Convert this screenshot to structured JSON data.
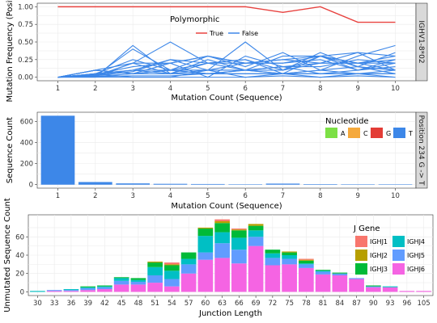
{
  "chart_data": [
    {
      "type": "line",
      "facet_label": "IGHV1-8*02",
      "xlabel": "Mutation Count (Sequence)",
      "ylabel": "Mutation Frequency (Position)",
      "x": [
        1,
        2,
        3,
        4,
        5,
        6,
        7,
        8,
        9,
        10
      ],
      "ylim": [
        0,
        1
      ],
      "yticks": [
        "0.00",
        "0.25",
        "0.50",
        "0.75",
        "1.00"
      ],
      "legend": {
        "title": "Polymorphic",
        "entries": [
          "True",
          "False"
        ],
        "position": "top-center"
      },
      "colors": {
        "True": "#e8423f",
        "False": "#3d87e8"
      },
      "series": [
        {
          "name": "True",
          "values": [
            1,
            1,
            1,
            1,
            1,
            1,
            0.92,
            1,
            0.78,
            0.78
          ]
        }
      ],
      "false_lines": [
        [
          0,
          0,
          0.45,
          0.05,
          0.05,
          0.05,
          0.05,
          0.1,
          0.05,
          0.05
        ],
        [
          0,
          0.02,
          0.4,
          0.1,
          0.1,
          0.1,
          0.05,
          0.05,
          0.05,
          0.1
        ],
        [
          0,
          0.01,
          0.2,
          0.5,
          0.2,
          0.25,
          0.05,
          0.3,
          0.2,
          0.2
        ],
        [
          0,
          0.05,
          0.1,
          0.25,
          0.1,
          0.5,
          0.1,
          0.3,
          0.1,
          0.25
        ],
        [
          0,
          0.05,
          0.25,
          0.1,
          0.3,
          0.15,
          0.35,
          0.1,
          0.3,
          0.45
        ],
        [
          0,
          0.02,
          0.08,
          0.25,
          0.2,
          0.25,
          0.1,
          0.35,
          0.15,
          0.35
        ],
        [
          0,
          0.1,
          0.05,
          0.05,
          0.2,
          0.1,
          0.3,
          0.3,
          0.2,
          0.3
        ],
        [
          0,
          0.04,
          0.15,
          0.2,
          0,
          0.3,
          0.15,
          0.2,
          0.35,
          0.1
        ],
        [
          0,
          0.1,
          0.2,
          0.2,
          0.3,
          0.2,
          0.2,
          0.25,
          0.1,
          0.2
        ],
        [
          0,
          0.03,
          0.1,
          0.1,
          0.1,
          0.1,
          0.15,
          0.15,
          0.25,
          0.2
        ],
        [
          0,
          0.1,
          0.05,
          0.1,
          0.2,
          0.2,
          0.25,
          0.3,
          0.35,
          0.3
        ],
        [
          0,
          0.1,
          0.05,
          0.2,
          0.3,
          0.2,
          0.25,
          0.2,
          0.2,
          0.1
        ],
        [
          0,
          0.1,
          0.05,
          0.1,
          0.05,
          0.1,
          0.1,
          0.2,
          0.2,
          0.25
        ],
        [
          0,
          0.01,
          0.05,
          0.1,
          0.05,
          0.1,
          0.05,
          0.1,
          0.15,
          0.05
        ],
        [
          0,
          0.05,
          0.1,
          0.05,
          0.25,
          0.1,
          0.15,
          0.05,
          0.1,
          0.15
        ],
        [
          0,
          0.02,
          0.2,
          0.05,
          0.1,
          0.2,
          0.2,
          0.3,
          0.15,
          0.1
        ],
        [
          0,
          0.05,
          0,
          0,
          0.1,
          0,
          0.05,
          0,
          0.05,
          0
        ],
        [
          0,
          0,
          0,
          0,
          0,
          0,
          0.02,
          0,
          0.02,
          0
        ],
        [
          0,
          0.01,
          0.02,
          0.02,
          0.05,
          0.05,
          0.05,
          0.05,
          0.05,
          0.05
        ]
      ]
    },
    {
      "type": "bar",
      "facet_label": "Position 234 G -> T",
      "xlabel": "Mutation Count (Sequence)",
      "ylabel": "Sequence Count",
      "categories": [
        "1",
        "2",
        "3",
        "4",
        "5",
        "6",
        "7",
        "8",
        "9",
        "10"
      ],
      "values": [
        655,
        25,
        12,
        8,
        6,
        4,
        10,
        5,
        4,
        4
      ],
      "ylim": [
        0,
        700
      ],
      "yticks": [
        "0",
        "200",
        "400",
        "600"
      ],
      "legend": {
        "title": "Nucleotide",
        "entries": [
          "A",
          "C",
          "G",
          "T"
        ],
        "position": "top-right"
      },
      "colors": {
        "A": "#7ce045",
        "C": "#f5a93c",
        "G": "#e33c36",
        "T": "#3d87e8"
      }
    },
    {
      "type": "bar",
      "stacked": true,
      "xlabel": "Junction Length",
      "ylabel": "Unmutated Sequence Count",
      "categories": [
        "30",
        "33",
        "36",
        "39",
        "42",
        "45",
        "48",
        "51",
        "54",
        "57",
        "60",
        "63",
        "66",
        "69",
        "72",
        "75",
        "78",
        "81",
        "84",
        "87",
        "90",
        "93",
        "96",
        "105"
      ],
      "ylim": [
        0,
        80
      ],
      "yticks": [
        "0",
        "20",
        "40",
        "60"
      ],
      "legend": {
        "title": "J Gene",
        "entries": [
          "IGHJ1",
          "IGHJ2",
          "IGHJ3",
          "IGHJ4",
          "IGHJ5",
          "IGHJ6"
        ],
        "position": "right"
      },
      "colors": {
        "IGHJ1": "#f8766d",
        "IGHJ2": "#b79f00",
        "IGHJ3": "#00ba38",
        "IGHJ4": "#00bfc4",
        "IGHJ5": "#619cff",
        "IGHJ6": "#f564e3"
      },
      "series": [
        {
          "name": "IGHJ6",
          "values": [
            0,
            1,
            1,
            2,
            3,
            8,
            8,
            10,
            6,
            20,
            35,
            37,
            31,
            50,
            29,
            30,
            26,
            19,
            18,
            14,
            5,
            5,
            1,
            1
          ]
        },
        {
          "name": "IGHJ5",
          "values": [
            0,
            1,
            1,
            2,
            2,
            4,
            3,
            8,
            8,
            10,
            8,
            16,
            15,
            10,
            8,
            6,
            4,
            3,
            2,
            1,
            1,
            0,
            0,
            0
          ]
        },
        {
          "name": "IGHJ4",
          "values": [
            1,
            0,
            1,
            1,
            1,
            3,
            2,
            9,
            9,
            6,
            18,
            12,
            13,
            7,
            5,
            4,
            1,
            1,
            0,
            0,
            0,
            1,
            0,
            0
          ]
        },
        {
          "name": "IGHJ3",
          "values": [
            0,
            0,
            0,
            1,
            1,
            1,
            2,
            5,
            6,
            7,
            8,
            10,
            8,
            5,
            4,
            3,
            3,
            1,
            1,
            0,
            1,
            0,
            0,
            0
          ]
        },
        {
          "name": "IGHJ2",
          "values": [
            0,
            0,
            0,
            0,
            0,
            0,
            0,
            1,
            1,
            0,
            1,
            2,
            1,
            2,
            0,
            1,
            1,
            0,
            0,
            0,
            0,
            0,
            0,
            0
          ]
        },
        {
          "name": "IGHJ1",
          "values": [
            0,
            0,
            0,
            0,
            0,
            0,
            0,
            0,
            2,
            0,
            0,
            2,
            1,
            0,
            0,
            0,
            1,
            0,
            0,
            0,
            0,
            0,
            0,
            0
          ]
        }
      ]
    }
  ]
}
